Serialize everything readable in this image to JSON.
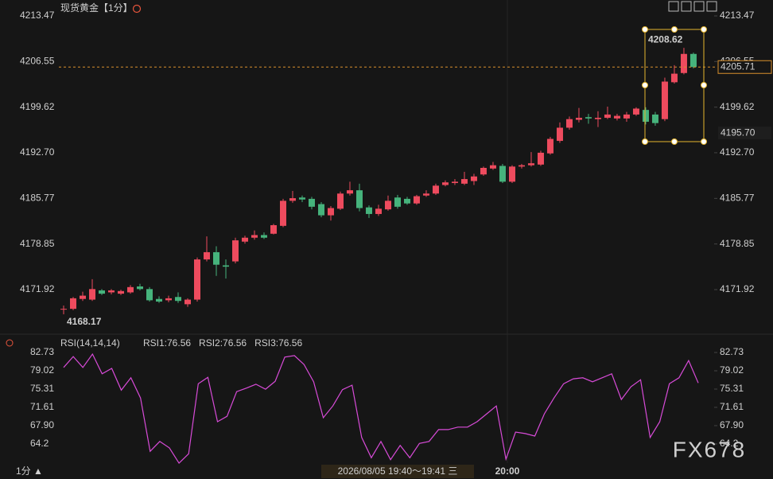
{
  "chart_data": [
    {
      "type": "candlestick",
      "title": "现货黄金【1分】",
      "up_color": "#ee4b5e",
      "down_color": "#46b37c",
      "open": [
        4168.9,
        4169.0,
        4170.5,
        4170.4,
        4171.8,
        4171.5,
        4171.3,
        4171.5,
        4172.4,
        4172.0,
        4170.5,
        4170.3,
        4170.8,
        4169.7,
        4170.4,
        4176.5,
        4177.6,
        4175.6,
        4176.2,
        4179.2,
        4179.8,
        4180.2,
        4180.4,
        4181.6,
        4185.4,
        4185.9,
        4185.7,
        4184.9,
        4183.2,
        4184.2,
        4186.5,
        4187.0,
        4184.4,
        4183.4,
        4184.1,
        4185.9,
        4185.7,
        4185.0,
        4186.2,
        4186.5,
        4187.8,
        4188.1,
        4188.0,
        4188.4,
        4189.4,
        4190.3,
        4190.7,
        4188.3,
        4190.6,
        4190.8,
        4190.9,
        4192.6,
        4194.5,
        4196.5,
        4197.7,
        4198.1,
        4197.8,
        4198.0,
        4197.9,
        4197.9,
        4198.5,
        4199.2,
        4198.5,
        4197.8,
        4203.4,
        4204.8,
        4207.7
      ],
      "high": [
        4169.5,
        4170.8,
        4171.6,
        4173.5,
        4172.0,
        4172.0,
        4171.9,
        4172.6,
        4172.8,
        4172.3,
        4170.9,
        4171.0,
        4171.5,
        4170.6,
        4176.8,
        4180.0,
        4178.5,
        4176.5,
        4179.8,
        4180.1,
        4180.9,
        4180.6,
        4181.9,
        4185.7,
        4186.9,
        4186.2,
        4186.0,
        4185.2,
        4184.6,
        4186.8,
        4188.3,
        4188.0,
        4184.7,
        4184.8,
        4186.2,
        4186.3,
        4186.0,
        4186.3,
        4187.0,
        4188.0,
        4188.5,
        4188.7,
        4189.8,
        4189.5,
        4190.6,
        4191.3,
        4191.0,
        4190.8,
        4191.0,
        4192.8,
        4193.0,
        4195.1,
        4197.3,
        4198.2,
        4199.5,
        4198.6,
        4199.0,
        4199.7,
        4198.6,
        4198.9,
        4199.6,
        4199.6,
        4198.9,
        4204.1,
        4206.0,
        4208.62,
        4207.9
      ],
      "low": [
        4168.17,
        4168.8,
        4170.2,
        4170.2,
        4171.1,
        4171.2,
        4171.1,
        4171.3,
        4171.8,
        4170.1,
        4169.9,
        4170.0,
        4169.9,
        4169.3,
        4170.1,
        4176.2,
        4174.0,
        4173.6,
        4175.9,
        4178.9,
        4179.5,
        4179.6,
        4180.3,
        4181.4,
        4185.1,
        4185.2,
        4184.1,
        4182.9,
        4182.4,
        4184.0,
        4186.2,
        4183.8,
        4182.8,
        4183.1,
        4183.9,
        4184.2,
        4184.8,
        4184.8,
        4186.0,
        4186.3,
        4187.6,
        4187.8,
        4187.8,
        4187.8,
        4189.2,
        4190.1,
        4188.1,
        4188.1,
        4190.3,
        4190.6,
        4190.7,
        4192.4,
        4194.2,
        4196.2,
        4197.3,
        4197.1,
        4196.6,
        4197.8,
        4197.6,
        4197.4,
        4198.3,
        4197.0,
        4196.8,
        4197.5,
        4203.2,
        4204.6,
        4205.5
      ],
      "close": [
        4169.0,
        4170.6,
        4171.0,
        4172.0,
        4171.3,
        4171.8,
        4171.7,
        4172.3,
        4172.0,
        4170.3,
        4170.1,
        4170.6,
        4170.2,
        4170.4,
        4176.5,
        4177.6,
        4175.7,
        4175.4,
        4179.4,
        4179.8,
        4180.2,
        4179.8,
        4181.7,
        4185.4,
        4185.8,
        4185.6,
        4184.5,
        4183.2,
        4184.3,
        4186.5,
        4187.0,
        4184.3,
        4183.4,
        4184.2,
        4185.4,
        4184.5,
        4185.0,
        4186.1,
        4186.5,
        4187.7,
        4188.2,
        4188.3,
        4188.7,
        4189.1,
        4190.4,
        4190.8,
        4188.3,
        4190.6,
        4190.8,
        4191.1,
        4192.7,
        4194.8,
        4196.5,
        4197.8,
        4198.0,
        4197.9,
        4198.0,
        4198.5,
        4198.3,
        4198.5,
        4199.4,
        4197.4,
        4197.2,
        4203.5,
        4204.7,
        4207.7,
        4205.71
      ],
      "selection_low_label": "4195.70",
      "ylim": [
        4166.36,
        4213.47
      ],
      "yticks": [
        {
          "value": 4213.47,
          "label": "4213.47"
        },
        {
          "value": 4206.55,
          "label": "4206.55"
        },
        {
          "value": 4199.62,
          "label": "4199.62"
        },
        {
          "value": 4192.7,
          "label": "4192.70"
        },
        {
          "value": 4185.77,
          "label": "4185.77"
        },
        {
          "value": 4178.85,
          "label": "4178.85"
        },
        {
          "value": 4171.92,
          "label": "4171.92"
        }
      ],
      "xlim": [
        -0.5,
        68.17
      ],
      "xticks": [
        {
          "value": 46.5,
          "label": "20:00"
        }
      ]
    },
    {
      "type": "line",
      "title": "RSI(14,14,14)",
      "legend": [
        {
          "text": "RSI1:76.56",
          "color": "#c9c9c9"
        },
        {
          "text": "RSI2:76.56",
          "color": "#e3c936"
        },
        {
          "text": "RSI3:76.56",
          "color": "#d84bd8"
        }
      ],
      "series": [
        {
          "color": "#d84bd8",
          "values": [
            79.7,
            81.9,
            79.7,
            82.4,
            78.4,
            79.5,
            75.1,
            77.6,
            73.5,
            62.7,
            64.7,
            63.4,
            60.3,
            62.2,
            76.4,
            77.7,
            68.7,
            69.8,
            74.8,
            75.5,
            76.3,
            75.3,
            76.9,
            81.8,
            82.1,
            80.3,
            76.8,
            69.5,
            71.9,
            75.2,
            76.1,
            65.5,
            61.4,
            64.7,
            61.0,
            63.9,
            61.4,
            64.3,
            64.7,
            67.1,
            67.1,
            67.6,
            67.6,
            68.7,
            70.3,
            71.9,
            61.1,
            66.6,
            66.3,
            65.8,
            70.3,
            73.5,
            76.4,
            77.4,
            77.6,
            76.8,
            77.6,
            78.4,
            73.2,
            75.8,
            77.2,
            65.5,
            68.7,
            76.4,
            77.6,
            81.1,
            76.56
          ]
        }
      ],
      "ylim": [
        59.83,
        84.02
      ],
      "yticks": [
        82.73,
        79.02,
        75.31,
        71.61,
        {
          "value": 67.9,
          "label": "67.90"
        },
        64.2
      ]
    }
  ],
  "footer": {
    "period": "1分 ▲",
    "time": "2026/08/05 19:40～19:41 三",
    "watermark": "FX678"
  }
}
